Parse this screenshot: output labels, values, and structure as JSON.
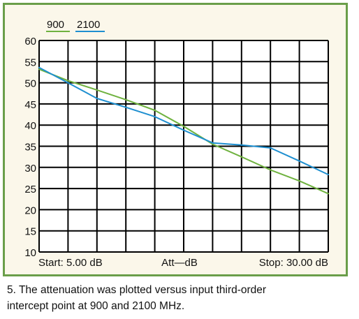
{
  "caption": {
    "line1": "5. The attenuation was plotted versus input third-order",
    "line2": "intercept point at 900 and 2100 MHz."
  },
  "colors": {
    "frame": "#6a9e4a",
    "background": "#fbf7ea",
    "grid": "#000000",
    "series_900": "#6fb23f",
    "series_2100": "#1e8fd0"
  },
  "chart_data": {
    "type": "line",
    "title": "",
    "xlabel": "Att—dB",
    "xlabel_start": "Start: 5.00 dB",
    "xlabel_stop": "Stop: 30.00 dB",
    "ylabel": "",
    "xlim": [
      5,
      30
    ],
    "ylim": [
      10,
      60
    ],
    "yticks": [
      "60",
      "55",
      "50",
      "45",
      "40",
      "35",
      "30",
      "25",
      "20",
      "15",
      "10"
    ],
    "grid": true,
    "legend_position": "top-left",
    "x": [
      5.0,
      7.5,
      10.0,
      12.5,
      15.0,
      17.5,
      20.0,
      22.5,
      25.0,
      27.5,
      30.0
    ],
    "series": [
      {
        "name": "900",
        "color": "#6fb23f",
        "values": [
          53.2,
          50.5,
          48.3,
          46.0,
          43.5,
          39.7,
          35.5,
          32.5,
          29.4,
          26.8,
          23.8
        ]
      },
      {
        "name": "2100",
        "color": "#1e8fd0",
        "values": [
          53.6,
          50.0,
          46.3,
          44.2,
          42.0,
          38.8,
          35.8,
          35.3,
          34.6,
          31.5,
          28.3
        ]
      }
    ]
  }
}
